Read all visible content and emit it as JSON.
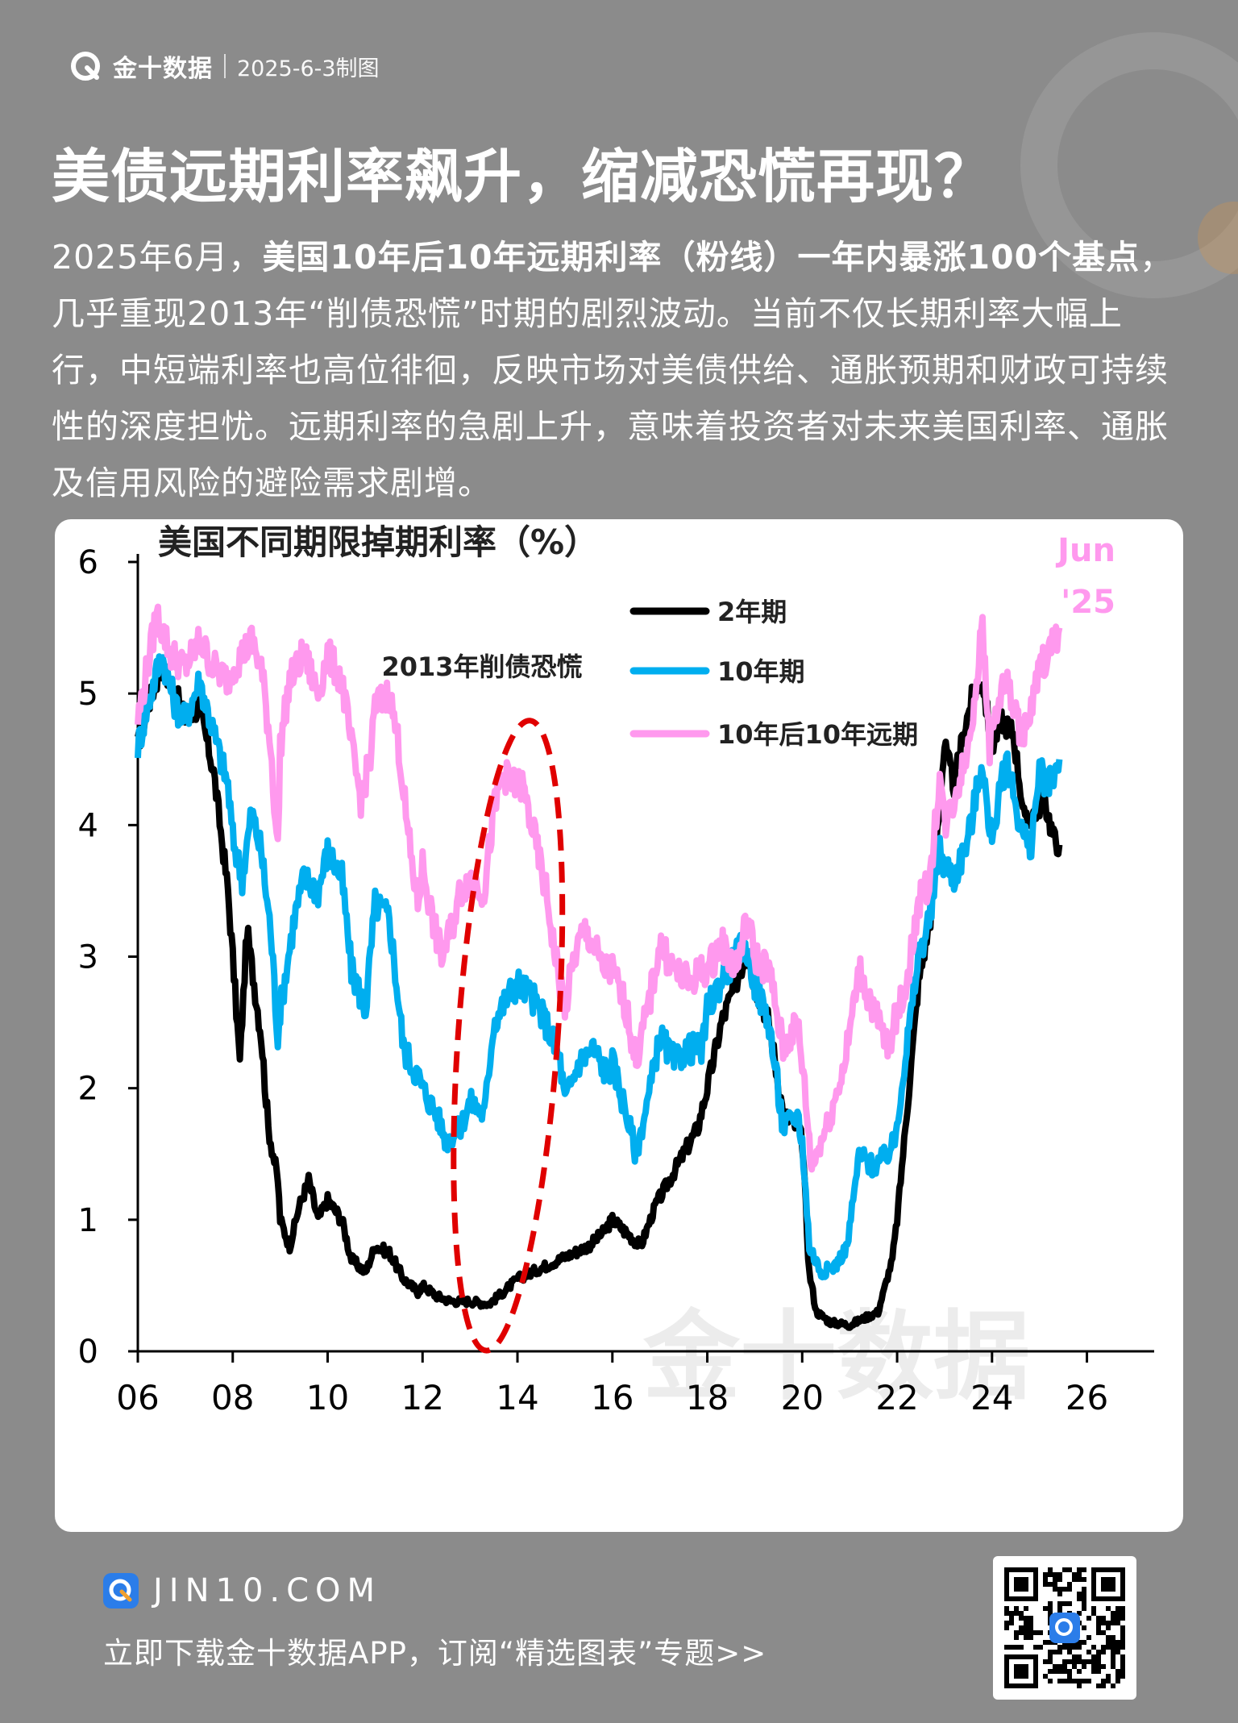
{
  "brand": {
    "name": "金十数据",
    "date": "2025-6-3制图"
  },
  "headline": "美债远期利率飙升，缩减恐慌再现？",
  "intro": {
    "p1": "2025年6月，",
    "b1": "美国10年后10年远期利率（粉线）一年内暴涨100个基点",
    "p2": "，几乎重现2013年“削债恐慌”时期的剧烈波动。当前不仅长期利率大幅上行，中短端利率也高位徘徊，反映市场对美债供给、通胀预期和财政可持续性的深度担忧。远期利率的急剧上升，意味着投资者对未来美国利率、通胀及信用风险的避险需求剧增。"
  },
  "chart_data": {
    "type": "line",
    "title": "美国不同期限掉期利率（%）",
    "xlabel": "",
    "ylabel": "",
    "xlim": [
      2006,
      2026.5
    ],
    "ylim": [
      0,
      6
    ],
    "x_ticks": [
      "06",
      "08",
      "10",
      "12",
      "14",
      "16",
      "18",
      "20",
      "22",
      "24",
      "26"
    ],
    "y_ticks": [
      "0",
      "1",
      "2",
      "3",
      "4",
      "5",
      "6"
    ],
    "grid": false,
    "legend_position": "top-center",
    "corner_label": [
      "Jun",
      "'25"
    ],
    "annotation": {
      "text": "2013年削债恐慌",
      "ellipse_center": [
        2013.8,
        2.4
      ],
      "ellipse_half_width": 1.05,
      "ellipse_half_height": 2.4
    },
    "watermark": "金十数据",
    "series": [
      {
        "name": "2年期",
        "color": "#000000",
        "points": [
          [
            2006.0,
            4.6
          ],
          [
            2006.2,
            4.9
          ],
          [
            2006.5,
            5.2
          ],
          [
            2006.8,
            5.0
          ],
          [
            2007.0,
            4.8
          ],
          [
            2007.3,
            4.9
          ],
          [
            2007.6,
            4.4
          ],
          [
            2007.9,
            3.5
          ],
          [
            2008.0,
            3.0
          ],
          [
            2008.15,
            2.2
          ],
          [
            2008.3,
            3.2
          ],
          [
            2008.45,
            2.8
          ],
          [
            2008.6,
            2.4
          ],
          [
            2008.75,
            1.7
          ],
          [
            2008.95,
            1.3
          ],
          [
            2009.0,
            1.0
          ],
          [
            2009.2,
            0.8
          ],
          [
            2009.4,
            1.1
          ],
          [
            2009.6,
            1.3
          ],
          [
            2009.8,
            1.0
          ],
          [
            2010.0,
            1.15
          ],
          [
            2010.3,
            1.0
          ],
          [
            2010.5,
            0.7
          ],
          [
            2010.8,
            0.6
          ],
          [
            2011.0,
            0.8
          ],
          [
            2011.3,
            0.75
          ],
          [
            2011.6,
            0.55
          ],
          [
            2011.9,
            0.45
          ],
          [
            2012.0,
            0.5
          ],
          [
            2012.3,
            0.42
          ],
          [
            2012.6,
            0.38
          ],
          [
            2013.0,
            0.38
          ],
          [
            2013.4,
            0.36
          ],
          [
            2013.7,
            0.45
          ],
          [
            2014.0,
            0.55
          ],
          [
            2014.3,
            0.6
          ],
          [
            2014.6,
            0.65
          ],
          [
            2014.9,
            0.7
          ],
          [
            2015.2,
            0.75
          ],
          [
            2015.5,
            0.8
          ],
          [
            2015.8,
            0.9
          ],
          [
            2016.0,
            1.0
          ],
          [
            2016.3,
            0.9
          ],
          [
            2016.6,
            0.8
          ],
          [
            2016.9,
            1.1
          ],
          [
            2017.2,
            1.3
          ],
          [
            2017.5,
            1.5
          ],
          [
            2017.8,
            1.7
          ],
          [
            2018.0,
            2.0
          ],
          [
            2018.3,
            2.5
          ],
          [
            2018.6,
            2.8
          ],
          [
            2018.85,
            3.05
          ],
          [
            2019.0,
            2.8
          ],
          [
            2019.3,
            2.5
          ],
          [
            2019.6,
            1.8
          ],
          [
            2019.9,
            1.7
          ],
          [
            2020.0,
            1.6
          ],
          [
            2020.15,
            0.6
          ],
          [
            2020.3,
            0.3
          ],
          [
            2020.6,
            0.22
          ],
          [
            2021.0,
            0.2
          ],
          [
            2021.3,
            0.25
          ],
          [
            2021.6,
            0.3
          ],
          [
            2021.9,
            0.7
          ],
          [
            2022.0,
            1.0
          ],
          [
            2022.2,
            1.8
          ],
          [
            2022.45,
            2.8
          ],
          [
            2022.7,
            3.3
          ],
          [
            2022.9,
            4.2
          ],
          [
            2023.0,
            4.6
          ],
          [
            2023.2,
            4.3
          ],
          [
            2023.4,
            4.7
          ],
          [
            2023.6,
            5.0
          ],
          [
            2023.8,
            5.1
          ],
          [
            2024.0,
            4.6
          ],
          [
            2024.2,
            4.8
          ],
          [
            2024.45,
            4.7
          ],
          [
            2024.7,
            4.0
          ],
          [
            2024.9,
            4.1
          ],
          [
            2025.1,
            4.2
          ],
          [
            2025.3,
            3.9
          ],
          [
            2025.42,
            3.85
          ]
        ]
      },
      {
        "name": "10年期",
        "color": "#00aeef",
        "points": [
          [
            2006.0,
            4.6
          ],
          [
            2006.2,
            4.9
          ],
          [
            2006.5,
            5.3
          ],
          [
            2006.8,
            4.9
          ],
          [
            2007.0,
            4.8
          ],
          [
            2007.3,
            5.1
          ],
          [
            2007.6,
            4.7
          ],
          [
            2007.9,
            4.3
          ],
          [
            2008.0,
            3.9
          ],
          [
            2008.2,
            3.6
          ],
          [
            2008.4,
            4.1
          ],
          [
            2008.6,
            3.8
          ],
          [
            2008.8,
            3.2
          ],
          [
            2008.95,
            2.4
          ],
          [
            2009.0,
            2.6
          ],
          [
            2009.3,
            3.3
          ],
          [
            2009.5,
            3.6
          ],
          [
            2009.8,
            3.5
          ],
          [
            2010.0,
            3.8
          ],
          [
            2010.3,
            3.6
          ],
          [
            2010.5,
            2.9
          ],
          [
            2010.8,
            2.6
          ],
          [
            2011.0,
            3.4
          ],
          [
            2011.3,
            3.3
          ],
          [
            2011.6,
            2.3
          ],
          [
            2011.9,
            2.1
          ],
          [
            2012.0,
            2.0
          ],
          [
            2012.3,
            1.8
          ],
          [
            2012.5,
            1.6
          ],
          [
            2012.8,
            1.7
          ],
          [
            2013.0,
            1.9
          ],
          [
            2013.3,
            1.8
          ],
          [
            2013.5,
            2.5
          ],
          [
            2013.8,
            2.7
          ],
          [
            2014.0,
            2.8
          ],
          [
            2014.3,
            2.7
          ],
          [
            2014.6,
            2.5
          ],
          [
            2014.9,
            2.2
          ],
          [
            2015.0,
            1.9
          ],
          [
            2015.3,
            2.2
          ],
          [
            2015.6,
            2.3
          ],
          [
            2015.9,
            2.1
          ],
          [
            2016.0,
            2.2
          ],
          [
            2016.3,
            1.8
          ],
          [
            2016.5,
            1.5
          ],
          [
            2016.8,
            2.0
          ],
          [
            2017.0,
            2.4
          ],
          [
            2017.3,
            2.2
          ],
          [
            2017.6,
            2.3
          ],
          [
            2017.9,
            2.3
          ],
          [
            2018.0,
            2.6
          ],
          [
            2018.4,
            2.9
          ],
          [
            2018.8,
            3.1
          ],
          [
            2019.0,
            2.8
          ],
          [
            2019.3,
            2.5
          ],
          [
            2019.6,
            1.7
          ],
          [
            2019.9,
            1.8
          ],
          [
            2020.0,
            1.6
          ],
          [
            2020.15,
            0.8
          ],
          [
            2020.4,
            0.6
          ],
          [
            2020.7,
            0.65
          ],
          [
            2020.95,
            0.8
          ],
          [
            2021.2,
            1.5
          ],
          [
            2021.5,
            1.4
          ],
          [
            2021.8,
            1.5
          ],
          [
            2021.95,
            1.6
          ],
          [
            2022.2,
            2.3
          ],
          [
            2022.45,
            3.0
          ],
          [
            2022.7,
            3.3
          ],
          [
            2022.9,
            3.8
          ],
          [
            2023.0,
            3.7
          ],
          [
            2023.2,
            3.6
          ],
          [
            2023.5,
            3.9
          ],
          [
            2023.8,
            4.5
          ],
          [
            2023.95,
            3.9
          ],
          [
            2024.1,
            4.1
          ],
          [
            2024.3,
            4.5
          ],
          [
            2024.6,
            4.0
          ],
          [
            2024.8,
            3.8
          ],
          [
            2025.0,
            4.4
          ],
          [
            2025.2,
            4.3
          ],
          [
            2025.42,
            4.5
          ]
        ]
      },
      {
        "name": "10年后10年远期",
        "color": "#ff99ee",
        "points": [
          [
            2006.0,
            4.8
          ],
          [
            2006.2,
            5.2
          ],
          [
            2006.4,
            5.6
          ],
          [
            2006.7,
            5.3
          ],
          [
            2007.0,
            5.2
          ],
          [
            2007.3,
            5.4
          ],
          [
            2007.6,
            5.2
          ],
          [
            2007.9,
            5.1
          ],
          [
            2008.0,
            5.2
          ],
          [
            2008.2,
            5.3
          ],
          [
            2008.4,
            5.4
          ],
          [
            2008.6,
            5.2
          ],
          [
            2008.8,
            4.6
          ],
          [
            2008.95,
            3.8
          ],
          [
            2009.0,
            4.6
          ],
          [
            2009.2,
            5.1
          ],
          [
            2009.5,
            5.3
          ],
          [
            2009.8,
            5.0
          ],
          [
            2010.0,
            5.3
          ],
          [
            2010.3,
            5.1
          ],
          [
            2010.5,
            4.6
          ],
          [
            2010.7,
            4.2
          ],
          [
            2010.9,
            4.5
          ],
          [
            2011.0,
            4.9
          ],
          [
            2011.3,
            5.0
          ],
          [
            2011.5,
            4.6
          ],
          [
            2011.7,
            3.9
          ],
          [
            2011.9,
            3.4
          ],
          [
            2012.0,
            3.7
          ],
          [
            2012.2,
            3.3
          ],
          [
            2012.4,
            3.0
          ],
          [
            2012.6,
            3.2
          ],
          [
            2012.8,
            3.5
          ],
          [
            2013.0,
            3.6
          ],
          [
            2013.3,
            3.5
          ],
          [
            2013.5,
            4.1
          ],
          [
            2013.7,
            4.4
          ],
          [
            2013.9,
            4.3
          ],
          [
            2014.1,
            4.3
          ],
          [
            2014.3,
            4.0
          ],
          [
            2014.6,
            3.5
          ],
          [
            2014.8,
            3.0
          ],
          [
            2015.0,
            2.6
          ],
          [
            2015.2,
            3.0
          ],
          [
            2015.4,
            3.2
          ],
          [
            2015.6,
            3.1
          ],
          [
            2015.8,
            2.9
          ],
          [
            2016.0,
            2.9
          ],
          [
            2016.3,
            2.6
          ],
          [
            2016.5,
            2.2
          ],
          [
            2016.8,
            2.7
          ],
          [
            2017.0,
            3.1
          ],
          [
            2017.3,
            2.9
          ],
          [
            2017.6,
            2.8
          ],
          [
            2017.9,
            2.9
          ],
          [
            2018.0,
            2.9
          ],
          [
            2018.3,
            3.1
          ],
          [
            2018.6,
            2.9
          ],
          [
            2018.85,
            3.3
          ],
          [
            2019.0,
            3.0
          ],
          [
            2019.3,
            2.9
          ],
          [
            2019.6,
            2.3
          ],
          [
            2019.9,
            2.5
          ],
          [
            2020.0,
            2.2
          ],
          [
            2020.2,
            1.4
          ],
          [
            2020.4,
            1.6
          ],
          [
            2020.6,
            1.8
          ],
          [
            2020.9,
            2.2
          ],
          [
            2021.2,
            2.9
          ],
          [
            2021.5,
            2.6
          ],
          [
            2021.8,
            2.3
          ],
          [
            2021.95,
            2.5
          ],
          [
            2022.2,
            2.8
          ],
          [
            2022.45,
            3.4
          ],
          [
            2022.7,
            3.6
          ],
          [
            2022.9,
            4.4
          ],
          [
            2023.0,
            4.0
          ],
          [
            2023.2,
            4.2
          ],
          [
            2023.5,
            4.6
          ],
          [
            2023.8,
            5.5
          ],
          [
            2023.95,
            4.6
          ],
          [
            2024.1,
            4.9
          ],
          [
            2024.3,
            5.1
          ],
          [
            2024.6,
            4.7
          ],
          [
            2024.8,
            4.8
          ],
          [
            2025.0,
            5.2
          ],
          [
            2025.2,
            5.3
          ],
          [
            2025.42,
            5.5
          ]
        ]
      }
    ]
  },
  "footer": {
    "site": "JIN10.COM",
    "cta": "立即下载金十数据APP，订阅“精选图表”专题>>"
  }
}
